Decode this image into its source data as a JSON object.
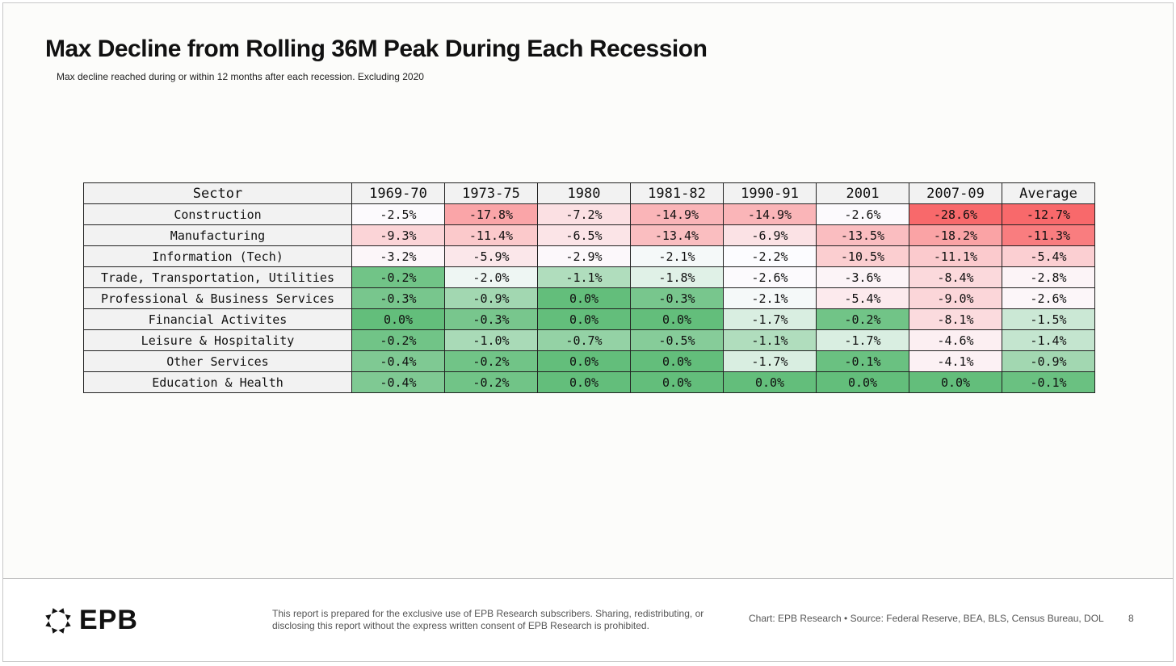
{
  "title": "Max Decline from Rolling 36M Peak During Each Recession",
  "subtitle": "Max decline reached during or within 12 months after each recession. Excluding 2020",
  "chart_data": {
    "type": "table",
    "title": "Max Decline from Rolling 36M Peak During Each Recession",
    "header": "Sector",
    "columns": [
      "1969-70",
      "1973-75",
      "1980",
      "1981-82",
      "1990-91",
      "2001",
      "2007-09",
      "Average"
    ],
    "rows": [
      {
        "sector": "Construction",
        "values": [
          "-2.5%",
          "-17.8%",
          "-7.2%",
          "-14.9%",
          "-14.9%",
          "-2.6%",
          "-28.6%",
          "-12.7%"
        ]
      },
      {
        "sector": "Manufacturing",
        "values": [
          "-9.3%",
          "-11.4%",
          "-6.5%",
          "-13.4%",
          "-6.9%",
          "-13.5%",
          "-18.2%",
          "-11.3%"
        ]
      },
      {
        "sector": "Information (Tech)",
        "values": [
          "-3.2%",
          "-5.9%",
          "-2.9%",
          "-2.1%",
          "-2.2%",
          "-10.5%",
          "-11.1%",
          "-5.4%"
        ]
      },
      {
        "sector": "Trade, Transportation, Utilities",
        "values": [
          "-0.2%",
          "-2.0%",
          "-1.1%",
          "-1.8%",
          "-2.6%",
          "-3.6%",
          "-8.4%",
          "-2.8%"
        ]
      },
      {
        "sector": "Professional & Business Services",
        "values": [
          "-0.3%",
          "-0.9%",
          "0.0%",
          "-0.3%",
          "-2.1%",
          "-5.4%",
          "-9.0%",
          "-2.6%"
        ]
      },
      {
        "sector": "Financial Activites",
        "values": [
          "0.0%",
          "-0.3%",
          "0.0%",
          "0.0%",
          "-1.7%",
          "-0.2%",
          "-8.1%",
          "-1.5%"
        ]
      },
      {
        "sector": "Leisure & Hospitality",
        "values": [
          "-0.2%",
          "-1.0%",
          "-0.7%",
          "-0.5%",
          "-1.1%",
          "-1.7%",
          "-4.6%",
          "-1.4%"
        ]
      },
      {
        "sector": "Other Services",
        "values": [
          "-0.4%",
          "-0.2%",
          "0.0%",
          "0.0%",
          "-1.7%",
          "-0.1%",
          "-4.1%",
          "-0.9%"
        ]
      },
      {
        "sector": "Education & Health",
        "values": [
          "-0.4%",
          "-0.2%",
          "0.0%",
          "0.0%",
          "0.0%",
          "0.0%",
          "0.0%",
          "-0.1%"
        ]
      }
    ],
    "colors": {
      "red": "#f8696b",
      "white": "#fcfcff",
      "green": "#63be7b"
    }
  },
  "footer": {
    "logo": "EPB",
    "disclaimer": "This report is prepared for the exclusive use of EPB Research subscribers. Sharing, redistributing, or disclosing this report without the express written consent of EPB Research is prohibited.",
    "source": "Chart: EPB Research  •  Source: Federal Reserve, BEA, BLS, Census Bureau, DOL",
    "page": "8"
  }
}
